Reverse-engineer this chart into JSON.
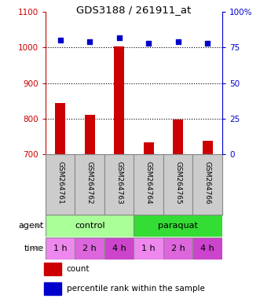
{
  "title": "GDS3188 / 261911_at",
  "samples": [
    "GSM264761",
    "GSM264762",
    "GSM264763",
    "GSM264764",
    "GSM264765",
    "GSM264766"
  ],
  "counts": [
    843,
    810,
    1003,
    733,
    798,
    737
  ],
  "percentiles": [
    80,
    79,
    82,
    78,
    79,
    78
  ],
  "ylim_left": [
    700,
    1100
  ],
  "ylim_right": [
    0,
    100
  ],
  "yticks_left": [
    700,
    800,
    900,
    1000,
    1100
  ],
  "yticks_right": [
    0,
    25,
    50,
    75,
    100
  ],
  "bar_color": "#cc0000",
  "dot_color": "#0000cc",
  "bar_width": 0.35,
  "agent_groups": [
    {
      "label": "control",
      "start": 0,
      "end": 3,
      "color": "#aaff99"
    },
    {
      "label": "paraquat",
      "start": 3,
      "end": 6,
      "color": "#33dd33"
    }
  ],
  "time_labels": [
    "1 h",
    "2 h",
    "4 h",
    "1 h",
    "2 h",
    "4 h"
  ],
  "time_colors": [
    "#ee88ee",
    "#dd66dd",
    "#cc44cc",
    "#ee88ee",
    "#dd66dd",
    "#cc44cc"
  ],
  "agent_label": "agent",
  "time_label": "time",
  "legend_count_label": "count",
  "legend_percentile_label": "percentile rank within the sample",
  "left_tick_color": "#cc0000",
  "right_tick_color": "#0000cc",
  "sample_bg_color": "#cccccc",
  "plot_bg": "#ffffff"
}
